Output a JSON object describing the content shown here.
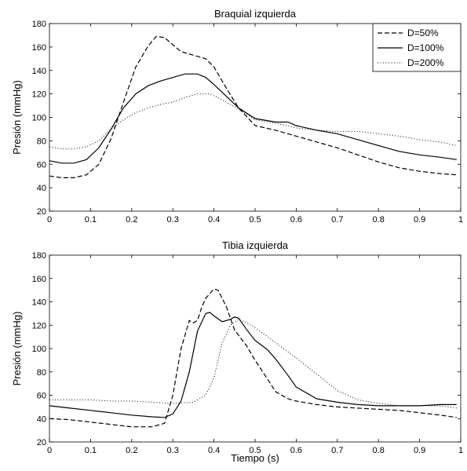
{
  "chart_data": [
    {
      "type": "line",
      "title": "Braquial izquierda",
      "xlabel": "",
      "ylabel": "Presión (mmHg)",
      "xlim": [
        0,
        1
      ],
      "ylim": [
        20,
        180
      ],
      "xticks": [
        0,
        0.1,
        0.2,
        0.3,
        0.4,
        0.5,
        0.6,
        0.7,
        0.8,
        0.9,
        1
      ],
      "yticks": [
        20,
        40,
        60,
        80,
        100,
        120,
        140,
        160,
        180
      ],
      "grid": false,
      "legend_position": "top-right",
      "legend": [
        "D=50%",
        "D=100%",
        "D=200%"
      ],
      "series": [
        {
          "name": "D=50%",
          "style": "dashed",
          "x": [
            0,
            0.03,
            0.06,
            0.09,
            0.12,
            0.15,
            0.18,
            0.21,
            0.24,
            0.26,
            0.28,
            0.3,
            0.32,
            0.35,
            0.38,
            0.4,
            0.43,
            0.46,
            0.5,
            0.55,
            0.6,
            0.65,
            0.7,
            0.75,
            0.8,
            0.85,
            0.9,
            0.95,
            0.99
          ],
          "y": [
            50,
            48.5,
            48.5,
            51,
            60,
            82,
            113,
            143,
            161,
            169,
            168,
            162,
            156,
            153,
            150,
            143,
            125,
            108,
            93,
            89,
            84,
            79,
            74,
            68,
            62,
            57,
            54,
            52,
            51
          ]
        },
        {
          "name": "D=100%",
          "style": "solid",
          "x": [
            0,
            0.03,
            0.06,
            0.09,
            0.12,
            0.15,
            0.18,
            0.21,
            0.24,
            0.27,
            0.3,
            0.33,
            0.36,
            0.38,
            0.4,
            0.43,
            0.46,
            0.5,
            0.55,
            0.58,
            0.6,
            0.65,
            0.7,
            0.75,
            0.8,
            0.85,
            0.9,
            0.95,
            0.99
          ],
          "y": [
            63,
            61,
            61,
            64,
            74,
            90,
            108,
            120,
            127,
            131,
            134,
            137,
            137,
            134,
            128,
            118,
            108,
            99,
            96,
            96,
            93,
            89,
            86,
            81,
            76,
            71,
            68,
            66,
            64
          ]
        },
        {
          "name": "D=200%",
          "style": "dotted",
          "x": [
            0,
            0.03,
            0.06,
            0.09,
            0.12,
            0.15,
            0.18,
            0.21,
            0.24,
            0.27,
            0.3,
            0.33,
            0.36,
            0.39,
            0.42,
            0.46,
            0.5,
            0.55,
            0.6,
            0.65,
            0.7,
            0.75,
            0.8,
            0.85,
            0.9,
            0.95,
            0.99
          ],
          "y": [
            75,
            73,
            73,
            75,
            80,
            90,
            98,
            104,
            108,
            111,
            113,
            117,
            120,
            120,
            115,
            107,
            98,
            95,
            91,
            89,
            88,
            88,
            86,
            84,
            81,
            79,
            76
          ]
        }
      ]
    },
    {
      "type": "line",
      "title": "Tibia izquierda",
      "xlabel": "Tiempo (s)",
      "ylabel": "Presión (mmHg)",
      "xlim": [
        0,
        1
      ],
      "ylim": [
        20,
        180
      ],
      "xticks": [
        0,
        0.1,
        0.2,
        0.3,
        0.4,
        0.5,
        0.6,
        0.7,
        0.8,
        0.9,
        1
      ],
      "yticks": [
        20,
        40,
        60,
        80,
        100,
        120,
        140,
        160,
        180
      ],
      "grid": false,
      "series": [
        {
          "name": "D=50%",
          "style": "dashed",
          "x": [
            0,
            0.05,
            0.1,
            0.15,
            0.2,
            0.25,
            0.28,
            0.3,
            0.32,
            0.34,
            0.35,
            0.36,
            0.37,
            0.38,
            0.4,
            0.41,
            0.43,
            0.45,
            0.48,
            0.5,
            0.53,
            0.55,
            0.58,
            0.6,
            0.65,
            0.7,
            0.75,
            0.8,
            0.85,
            0.9,
            0.95,
            0.99
          ],
          "y": [
            40,
            39,
            37,
            35,
            33,
            33,
            36,
            60,
            100,
            124,
            122,
            124,
            135,
            143,
            151,
            150,
            136,
            116,
            102,
            90,
            74,
            63,
            57,
            55,
            52,
            50,
            49,
            48,
            47,
            45,
            43,
            41
          ]
        },
        {
          "name": "D=100%",
          "style": "solid",
          "x": [
            0,
            0.05,
            0.1,
            0.15,
            0.2,
            0.25,
            0.28,
            0.3,
            0.32,
            0.34,
            0.36,
            0.38,
            0.39,
            0.4,
            0.42,
            0.44,
            0.45,
            0.46,
            0.48,
            0.5,
            0.53,
            0.55,
            0.58,
            0.6,
            0.65,
            0.7,
            0.75,
            0.8,
            0.85,
            0.9,
            0.95,
            0.99
          ],
          "y": [
            51,
            49,
            47,
            45,
            43,
            41.5,
            41,
            44,
            55,
            80,
            115,
            130,
            131,
            128,
            123,
            125,
            127,
            126,
            116,
            107,
            99,
            91,
            77,
            67,
            57,
            54,
            52,
            51,
            51,
            51,
            52,
            52
          ]
        },
        {
          "name": "D=200%",
          "style": "dotted",
          "x": [
            0,
            0.05,
            0.1,
            0.15,
            0.2,
            0.25,
            0.3,
            0.35,
            0.38,
            0.4,
            0.42,
            0.44,
            0.46,
            0.48,
            0.5,
            0.55,
            0.6,
            0.65,
            0.7,
            0.75,
            0.8,
            0.85,
            0.9,
            0.95,
            0.99
          ],
          "y": [
            56,
            56,
            56,
            55,
            55,
            54,
            53,
            54,
            60,
            75,
            105,
            120,
            125,
            122,
            118,
            105,
            92,
            78,
            64,
            56,
            53,
            51,
            51,
            51,
            49
          ]
        }
      ]
    }
  ]
}
